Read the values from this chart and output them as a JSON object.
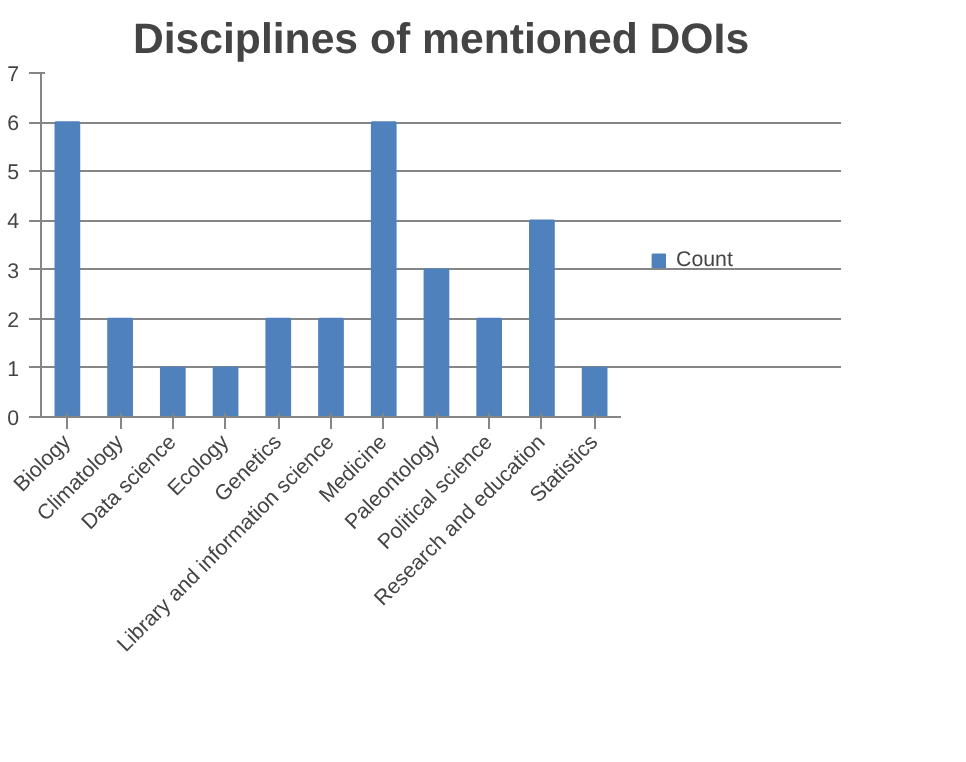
{
  "chart_data": {
    "type": "bar",
    "title": "Disciplines of mentioned DOIs",
    "categories": [
      "Biology",
      "Climatology",
      "Data science",
      "Ecology",
      "Genetics",
      "Library and information science",
      "Medicine",
      "Paleontology",
      "Political science",
      "Research and education",
      "Statistics"
    ],
    "series": [
      {
        "name": "Count",
        "color": "#4f81bd",
        "values": [
          6,
          2,
          1,
          1,
          2,
          2,
          6,
          3,
          2,
          4,
          1
        ]
      }
    ],
    "ylim": [
      0,
      7
    ],
    "yticks": [
      0,
      1,
      2,
      3,
      4,
      5,
      6,
      7
    ],
    "grid": "y",
    "legend": "right"
  }
}
